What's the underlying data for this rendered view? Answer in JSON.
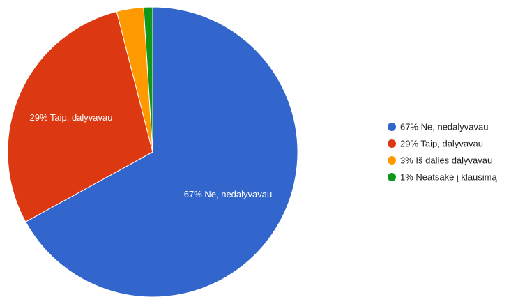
{
  "chart_data": {
    "type": "pie",
    "legend_position": "right",
    "slices": [
      {
        "label": "Ne, nedalyvavau",
        "value": 67,
        "color": "#3366cc",
        "slice_label": "67% Ne, nedalyvavau",
        "legend_label": "67% Ne, nedalyvavau"
      },
      {
        "label": "Taip, dalyvavau",
        "value": 29,
        "color": "#dc3912",
        "slice_label": "29% Taip, dalyvavau",
        "legend_label": "29% Taip, dalyvavau"
      },
      {
        "label": "Iš dalies dalyvavau",
        "value": 3,
        "color": "#ff9900",
        "slice_label": "",
        "legend_label": "3% Iš dalies dalyvavau"
      },
      {
        "label": "Neatsakė į klausimą",
        "value": 1,
        "color": "#109618",
        "slice_label": "",
        "legend_label": "1% Neatsakė į klausimą"
      }
    ]
  }
}
